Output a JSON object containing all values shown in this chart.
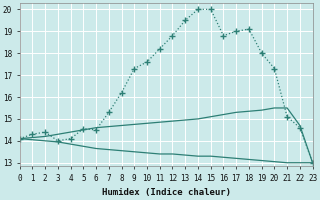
{
  "xlabel": "Humidex (Indice chaleur)",
  "bg_color": "#cceaea",
  "grid_color": "#aadddd",
  "line_color": "#2d7f75",
  "x_values": [
    0,
    1,
    2,
    3,
    4,
    5,
    6,
    7,
    8,
    9,
    10,
    11,
    12,
    13,
    14,
    15,
    16,
    17,
    18,
    19,
    20,
    21,
    22,
    23
  ],
  "line1": [
    14.1,
    14.3,
    14.4,
    14.0,
    14.1,
    14.55,
    14.5,
    15.3,
    16.2,
    17.3,
    17.6,
    18.2,
    18.8,
    19.5,
    20.0,
    20.0,
    18.8,
    19.0,
    19.1,
    18.0,
    17.3,
    15.1,
    14.6,
    13.0
  ],
  "line2": [
    14.1,
    14.15,
    14.2,
    14.3,
    14.4,
    14.5,
    14.6,
    14.65,
    14.7,
    14.75,
    14.8,
    14.85,
    14.9,
    14.95,
    15.0,
    15.1,
    15.2,
    15.3,
    15.35,
    15.4,
    15.5,
    15.5,
    14.7,
    13.0
  ],
  "line3": [
    14.1,
    14.05,
    14.0,
    13.95,
    13.85,
    13.75,
    13.65,
    13.6,
    13.55,
    13.5,
    13.45,
    13.4,
    13.4,
    13.35,
    13.3,
    13.3,
    13.25,
    13.2,
    13.15,
    13.1,
    13.05,
    13.0,
    13.0,
    13.0
  ],
  "xlim": [
    0,
    23
  ],
  "ylim": [
    12.85,
    20.3
  ],
  "yticks": [
    13,
    14,
    15,
    16,
    17,
    18,
    19,
    20
  ],
  "xticks": [
    0,
    1,
    2,
    3,
    4,
    5,
    6,
    7,
    8,
    9,
    10,
    11,
    12,
    13,
    14,
    15,
    16,
    17,
    18,
    19,
    20,
    21,
    22,
    23
  ]
}
